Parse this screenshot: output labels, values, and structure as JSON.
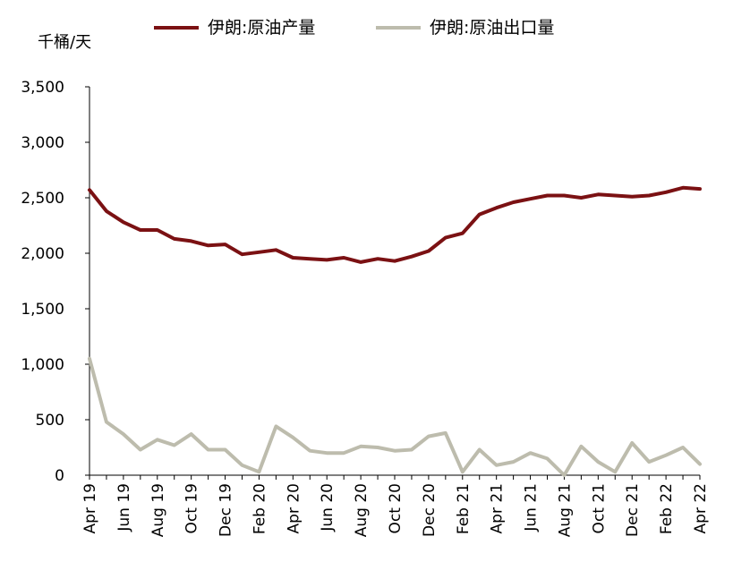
{
  "chart_data": {
    "type": "line",
    "unit_label": "千桶/天",
    "ylim": [
      0,
      3500
    ],
    "y_ticks": [
      "0",
      "500",
      "1,000",
      "1,500",
      "2,000",
      "2,500",
      "3,000",
      "3,500"
    ],
    "y_tick_values": [
      0,
      500,
      1000,
      1500,
      2000,
      2500,
      3000,
      3500
    ],
    "x_tick_labels": [
      "Apr 19",
      "Jun 19",
      "Aug 19",
      "Oct 19",
      "Dec 19",
      "Feb 20",
      "Apr 20",
      "Jun 20",
      "Aug 20",
      "Oct 20",
      "Dec 20",
      "Feb 21",
      "Apr 21",
      "Jun 21",
      "Aug 21",
      "Oct 21",
      "Dec 21",
      "Feb 22",
      "Apr 22"
    ],
    "x": [
      "2019-04",
      "2019-05",
      "2019-06",
      "2019-07",
      "2019-08",
      "2019-09",
      "2019-10",
      "2019-11",
      "2019-12",
      "2020-01",
      "2020-02",
      "2020-03",
      "2020-04",
      "2020-05",
      "2020-06",
      "2020-07",
      "2020-08",
      "2020-09",
      "2020-10",
      "2020-11",
      "2020-12",
      "2021-01",
      "2021-02",
      "2021-03",
      "2021-04",
      "2021-05",
      "2021-06",
      "2021-07",
      "2021-08",
      "2021-09",
      "2021-10",
      "2021-11",
      "2021-12",
      "2022-01",
      "2022-02",
      "2022-03",
      "2022-04"
    ],
    "legend_position": "top",
    "grid": false,
    "series": [
      {
        "name": "伊朗:原油产量",
        "color": "#7b1113",
        "values": [
          2570,
          2380,
          2280,
          2210,
          2210,
          2130,
          2110,
          2070,
          2080,
          1990,
          2010,
          2030,
          1960,
          1950,
          1940,
          1960,
          1920,
          1950,
          1930,
          1970,
          2020,
          2140,
          2180,
          2350,
          2410,
          2460,
          2490,
          2520,
          2520,
          2500,
          2530,
          2520,
          2510,
          2520,
          2550,
          2590,
          2580
        ]
      },
      {
        "name": "伊朗:原油出口量",
        "color": "#bdbcad",
        "values": [
          1050,
          480,
          370,
          230,
          320,
          270,
          370,
          230,
          230,
          90,
          30,
          440,
          340,
          220,
          200,
          200,
          260,
          250,
          220,
          230,
          350,
          380,
          30,
          230,
          90,
          120,
          200,
          150,
          0,
          260,
          120,
          30,
          290,
          120,
          180,
          250,
          100
        ]
      }
    ]
  }
}
